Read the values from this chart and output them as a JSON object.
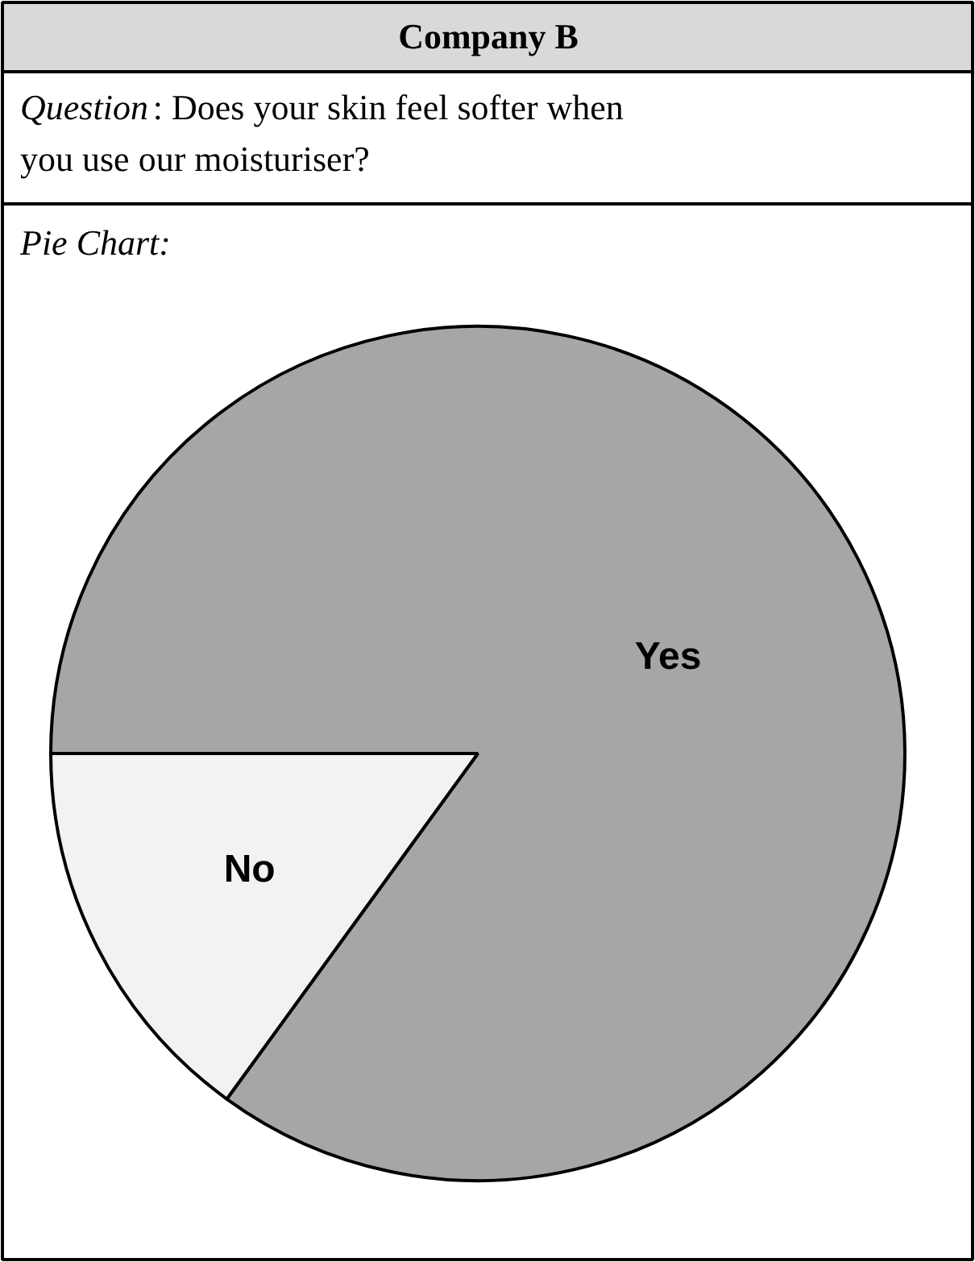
{
  "chart_data": {
    "type": "pie",
    "title": "Company B",
    "subtitle": "Question: Does your skin feel softer when you use our moisturiser?",
    "annotations": [
      "Pie Chart:"
    ],
    "categories": [
      "Yes",
      "No"
    ],
    "values": [
      85,
      15
    ],
    "colors": [
      "#a6a6a6",
      "#f2f2f2"
    ]
  }
}
